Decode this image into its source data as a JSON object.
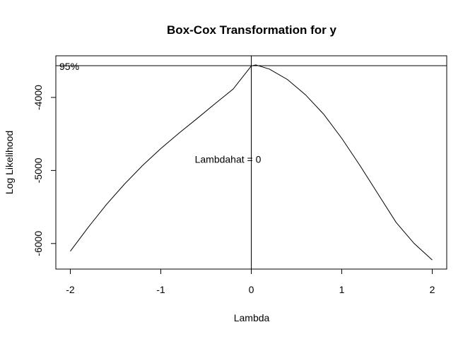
{
  "chart_data": {
    "type": "line",
    "title": "Box-Cox Transformation for y",
    "xlabel": "Lambda",
    "ylabel": "Log Likelihood",
    "xlim": [
      -2.16,
      2.16
    ],
    "ylim": [
      -6350,
      -3430
    ],
    "x_ticks": [
      -2,
      -1,
      0,
      1,
      2
    ],
    "x_tick_labels": [
      "-2",
      "-1",
      "0",
      "1",
      "2"
    ],
    "y_ticks": [
      -6000,
      -5000,
      -4000
    ],
    "y_tick_labels": [
      "-6000",
      "-5000",
      "-4000"
    ],
    "series": [
      {
        "x": [
          -2.0,
          -1.8,
          -1.6,
          -1.4,
          -1.2,
          -1.0,
          -0.8,
          -0.6,
          -0.4,
          -0.2,
          0.0,
          0.05,
          0.2,
          0.4,
          0.6,
          0.8,
          1.0,
          1.2,
          1.4,
          1.6,
          1.8,
          2.0
        ],
        "y": [
          -6105,
          -5775,
          -5465,
          -5185,
          -4930,
          -4700,
          -4490,
          -4290,
          -4085,
          -3885,
          -3570,
          -3555,
          -3612,
          -3755,
          -3965,
          -4230,
          -4560,
          -4930,
          -5320,
          -5710,
          -6000,
          -6225
        ]
      }
    ],
    "ci_level_y": -3565,
    "ci_label": "95%",
    "lambda_hat_x": 0,
    "annotation": "Lambdahat = 0",
    "annotation_y": -4845
  }
}
